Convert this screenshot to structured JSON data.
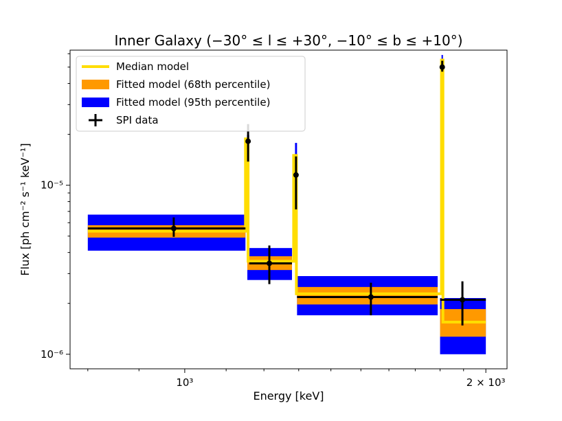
{
  "chart_data": {
    "type": "step-spectrum",
    "title": "Inner Galaxy (−30° ≤ l ≤ +30°, −10° ≤ b ≤ +10°)",
    "xlabel": "Energy [keV]",
    "ylabel": "Flux [ph cm⁻² s⁻¹ keV⁻¹]",
    "xscale": "log",
    "yscale": "log",
    "xlim": [
      768,
      2100
    ],
    "ylim": [
      8.2e-07,
      6.3e-05
    ],
    "x_ticks": [
      {
        "value": 1000,
        "label": "10³"
      },
      {
        "value": 2000,
        "label": "2 × 10³"
      }
    ],
    "y_ticks": [
      {
        "value": 1e-06,
        "label": "10⁻⁶"
      },
      {
        "value": 1e-05,
        "label": "10⁻⁵"
      }
    ],
    "legend": {
      "position": "upper-left",
      "entries": [
        {
          "label": "Median model",
          "kind": "line",
          "color": "#ffdd00"
        },
        {
          "label": "Fitted model (68th percentile)",
          "kind": "patch",
          "color": "#ff9900"
        },
        {
          "label": "Fitted model (95th percentile)",
          "kind": "patch",
          "color": "#0000ff"
        },
        {
          "label": "SPI data",
          "kind": "errorbar",
          "color": "#000000"
        }
      ]
    },
    "bands": [
      {
        "x0": 800,
        "x1": 1150,
        "p95": [
          4.1e-06,
          6.7e-06
        ],
        "p68": [
          4.9e-06,
          5.8e-06
        ],
        "median": 5.35e-06
      },
      {
        "x0": 1155,
        "x1": 1280,
        "p95": [
          2.75e-06,
          4.25e-06
        ],
        "p68": [
          3.15e-06,
          3.8e-06
        ],
        "median": 3.55e-06
      },
      {
        "x0": 1295,
        "x1": 1790,
        "p95": [
          1.7e-06,
          2.9e-06
        ],
        "p68": [
          1.97e-06,
          2.5e-06
        ],
        "median": 2.28e-06
      },
      {
        "x0": 1800,
        "x1": 2000,
        "p95": [
          1e-06,
          2.15e-06
        ],
        "p68": [
          1.27e-06,
          1.85e-06
        ],
        "median": 1.55e-06
      }
    ],
    "lines": [
      {
        "energy": 1157,
        "p95": [
          1.5e-05,
          1.98e-05
        ],
        "p68": [
          1.55e-05,
          1.88e-05
        ],
        "peak": 1.88e-05
      },
      {
        "energy": 1292,
        "p95": [
          1.2e-05,
          1.78e-05
        ],
        "p68": [
          1.28e-05,
          1.5e-05
        ],
        "peak": 1.5e-05
      },
      {
        "energy": 1809,
        "p95": [
          4.6e-05,
          5.9e-05
        ],
        "p68": [
          4.85e-05,
          5.5e-05
        ],
        "peak": 5.5e-05
      }
    ],
    "median_model": [
      [
        800,
        5.35e-06
      ],
      [
        1150,
        5.35e-06
      ],
      [
        1150,
        1.88e-05
      ],
      [
        1157,
        1.88e-05
      ],
      [
        1157,
        3.55e-06
      ],
      [
        1285,
        3.55e-06
      ],
      [
        1285,
        1.5e-05
      ],
      [
        1293,
        1.5e-05
      ],
      [
        1293,
        2.28e-06
      ],
      [
        1806,
        2.28e-06
      ],
      [
        1806,
        5.5e-05
      ],
      [
        1812,
        5.5e-05
      ],
      [
        1812,
        1.55e-06
      ],
      [
        2000,
        1.55e-06
      ]
    ],
    "spi_data": [
      {
        "x": 975,
        "xerr": [
          800,
          1150
        ],
        "y": 5.55e-06,
        "yerr": [
          4.95e-06,
          6.45e-06
        ]
      },
      {
        "x": 1157,
        "xerr": [
          1155,
          1160
        ],
        "y": 1.82e-05,
        "yerr": [
          1.38e-05,
          2.3e-05
        ]
      },
      {
        "x": 1215,
        "xerr": [
          1160,
          1280
        ],
        "y": 3.45e-06,
        "yerr": [
          2.6e-06,
          4.4e-06
        ]
      },
      {
        "x": 1292,
        "xerr": [
          1289,
          1296
        ],
        "y": 1.15e-05,
        "yerr": [
          7.2e-06,
          1.48e-05
        ]
      },
      {
        "x": 1535,
        "xerr": [
          1295,
          1790
        ],
        "y": 2.18e-06,
        "yerr": [
          1.7e-06,
          2.65e-06
        ]
      },
      {
        "x": 1809,
        "xerr": [
          1806,
          1812
        ],
        "y": 5e-05,
        "yerr": [
          4.7e-05,
          5.45e-05
        ]
      },
      {
        "x": 1895,
        "xerr": [
          1800,
          2000
        ],
        "y": 2.1e-06,
        "yerr": [
          1.48e-06,
          2.7e-06
        ]
      }
    ]
  }
}
